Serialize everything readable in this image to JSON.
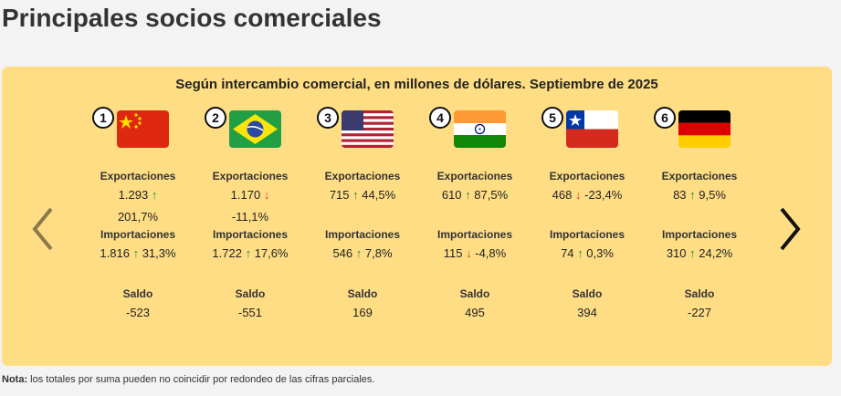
{
  "page": {
    "title": "Principales socios comerciales"
  },
  "panel": {
    "subtitle": "Según intercambio comercial, en millones de dólares. Septiembre de 2025"
  },
  "labels": {
    "exports": "Exportaciones",
    "imports": "Importaciones",
    "balance": "Saldo"
  },
  "partners": [
    {
      "rank": "1",
      "flag": "china-flag-icon",
      "exports": {
        "value": "1.293",
        "dir": "up",
        "change": "201,7%"
      },
      "imports": {
        "value": "1.816",
        "dir": "up",
        "change": "31,3%"
      },
      "balance": "-523"
    },
    {
      "rank": "2",
      "flag": "brazil-flag-icon",
      "exports": {
        "value": "1.170",
        "dir": "down",
        "change": "-11,1%"
      },
      "imports": {
        "value": "1.722",
        "dir": "up",
        "change": "17,6%"
      },
      "balance": "-551"
    },
    {
      "rank": "3",
      "flag": "usa-flag-icon",
      "exports": {
        "value": "715",
        "dir": "up",
        "change": "44,5%"
      },
      "imports": {
        "value": "546",
        "dir": "up",
        "change": "7,8%"
      },
      "balance": "169"
    },
    {
      "rank": "4",
      "flag": "india-flag-icon",
      "exports": {
        "value": "610",
        "dir": "up",
        "change": "87,5%"
      },
      "imports": {
        "value": "115",
        "dir": "down",
        "change": "-4,8%"
      },
      "balance": "495"
    },
    {
      "rank": "5",
      "flag": "chile-flag-icon",
      "exports": {
        "value": "468",
        "dir": "down",
        "change": "-23,4%"
      },
      "imports": {
        "value": "74",
        "dir": "up",
        "change": "0,3%"
      },
      "balance": "394"
    },
    {
      "rank": "6",
      "flag": "germany-flag-icon",
      "exports": {
        "value": "83",
        "dir": "up",
        "change": "9,5%"
      },
      "imports": {
        "value": "310",
        "dir": "up",
        "change": "24,2%"
      },
      "balance": "-227"
    }
  ],
  "arrows": {
    "up": "↑",
    "down": "↓"
  },
  "note": {
    "label": "Nota:",
    "text": " los totales por suma pueden no coincidir por redondeo de las cifras parciales."
  },
  "colors": {
    "panel": "#ffdd85",
    "up": "#2e8b3a",
    "down": "#d23c2c"
  }
}
